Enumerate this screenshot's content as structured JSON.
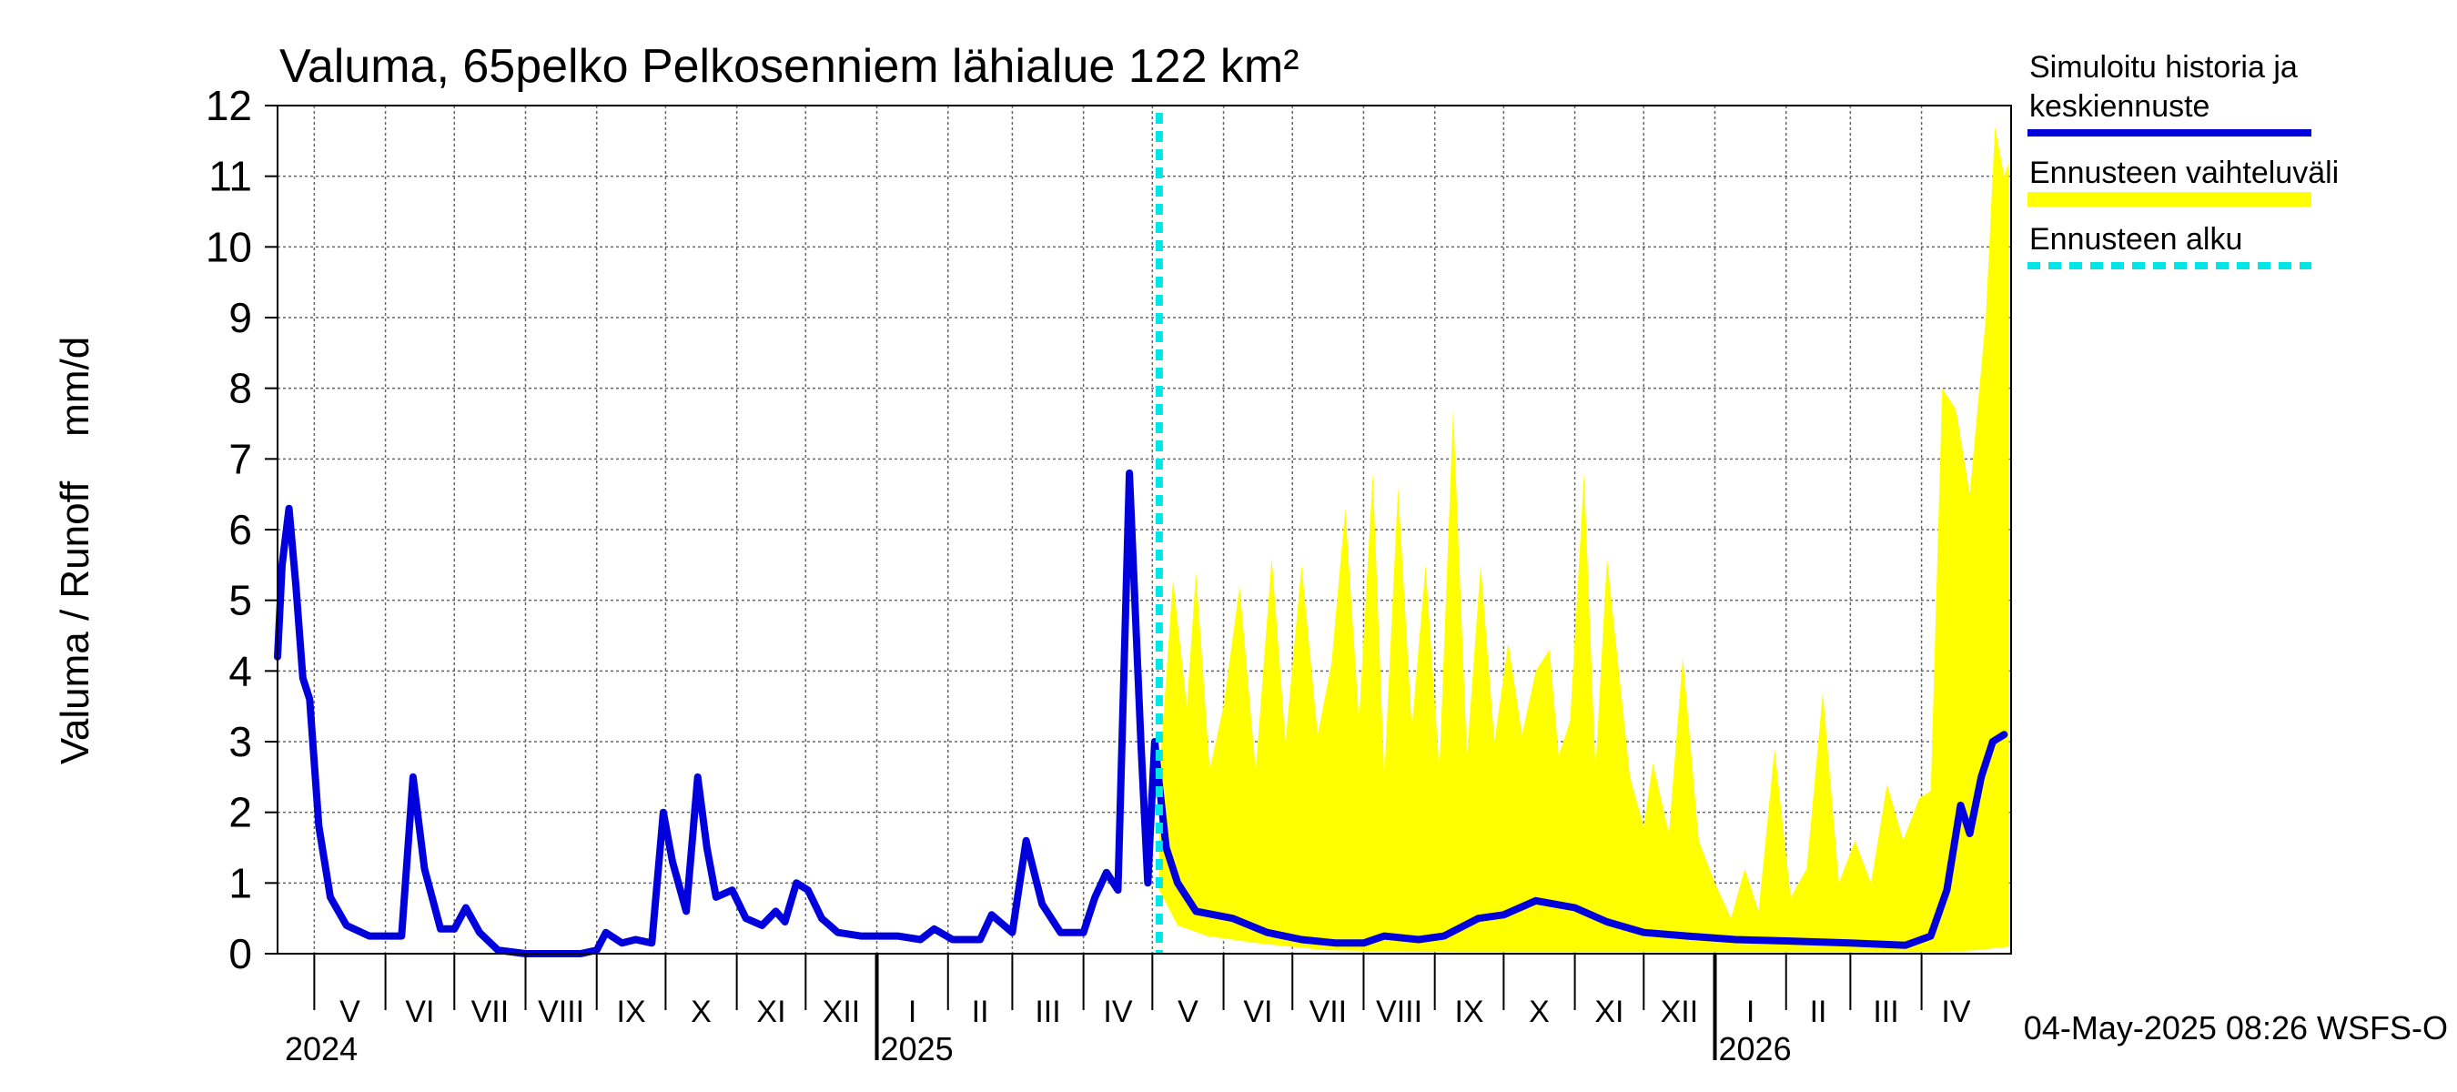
{
  "chart_data": {
    "type": "area",
    "title": "Valuma, 65pelko Pelkosenniem lähialue 122 km²",
    "ylabel": "Valuma / Runoff    mm/d",
    "xlabel": "",
    "ylim": [
      0,
      12
    ],
    "y_ticks": [
      "0",
      "1",
      "2",
      "3",
      "4",
      "5",
      "6",
      "7",
      "8",
      "9",
      "10",
      "11",
      "12"
    ],
    "grid": true,
    "legend_position": "right",
    "timestamp": "04-May-2025 08:26 WSFS-O",
    "x_start": "2024-04-15",
    "x_end": "2026-05-10",
    "forecast_start": "2025-05-04",
    "month_labels": [
      {
        "label": "V",
        "start": "2024-05-01",
        "end": "2024-06-01"
      },
      {
        "label": "VI",
        "start": "2024-06-01",
        "end": "2024-07-01"
      },
      {
        "label": "VII",
        "start": "2024-07-01",
        "end": "2024-08-01"
      },
      {
        "label": "VIII",
        "start": "2024-08-01",
        "end": "2024-09-01"
      },
      {
        "label": "IX",
        "start": "2024-09-01",
        "end": "2024-10-01"
      },
      {
        "label": "X",
        "start": "2024-10-01",
        "end": "2024-11-01"
      },
      {
        "label": "XI",
        "start": "2024-11-01",
        "end": "2024-12-01"
      },
      {
        "label": "XII",
        "start": "2024-12-01",
        "end": "2025-01-01"
      },
      {
        "label": "I",
        "start": "2025-01-01",
        "end": "2025-02-01"
      },
      {
        "label": "II",
        "start": "2025-02-01",
        "end": "2025-03-01"
      },
      {
        "label": "III",
        "start": "2025-03-01",
        "end": "2025-04-01"
      },
      {
        "label": "IV",
        "start": "2025-04-01",
        "end": "2025-05-01"
      },
      {
        "label": "V",
        "start": "2025-05-01",
        "end": "2025-06-01"
      },
      {
        "label": "VI",
        "start": "2025-06-01",
        "end": "2025-07-01"
      },
      {
        "label": "VII",
        "start": "2025-07-01",
        "end": "2025-08-01"
      },
      {
        "label": "VIII",
        "start": "2025-08-01",
        "end": "2025-09-01"
      },
      {
        "label": "IX",
        "start": "2025-09-01",
        "end": "2025-10-01"
      },
      {
        "label": "X",
        "start": "2025-10-01",
        "end": "2025-11-01"
      },
      {
        "label": "XI",
        "start": "2025-11-01",
        "end": "2025-12-01"
      },
      {
        "label": "XII",
        "start": "2025-12-01",
        "end": "2026-01-01"
      },
      {
        "label": "I",
        "start": "2026-01-01",
        "end": "2026-02-01"
      },
      {
        "label": "II",
        "start": "2026-02-01",
        "end": "2026-03-01"
      },
      {
        "label": "III",
        "start": "2026-03-01",
        "end": "2026-04-01"
      },
      {
        "label": "IV",
        "start": "2026-04-01",
        "end": "2026-05-01"
      }
    ],
    "year_labels": [
      {
        "label": "2024",
        "date": "2024-04-15"
      },
      {
        "label": "2025",
        "date": "2025-01-01"
      },
      {
        "label": "2026",
        "date": "2026-01-01"
      }
    ],
    "legend": [
      {
        "label_lines": [
          "Simuloitu historia ja",
          "keskiennuste"
        ],
        "style": "line",
        "color": "#0000dd"
      },
      {
        "label_lines": [
          "Ennusteen vaihteluväli"
        ],
        "style": "band",
        "color": "#ffff00"
      },
      {
        "label_lines": [
          "Ennusteen alku"
        ],
        "style": "dashed",
        "color": "#00e5e5"
      }
    ],
    "series": [
      {
        "name": "Simuloitu historia ja keskiennuste",
        "color": "#0000dd",
        "points": [
          [
            "2024-04-15",
            4.2
          ],
          [
            "2024-04-17",
            5.5
          ],
          [
            "2024-04-20",
            6.3
          ],
          [
            "2024-04-23",
            5.2
          ],
          [
            "2024-04-26",
            3.9
          ],
          [
            "2024-04-29",
            3.6
          ],
          [
            "2024-05-03",
            1.8
          ],
          [
            "2024-05-08",
            0.8
          ],
          [
            "2024-05-15",
            0.4
          ],
          [
            "2024-05-25",
            0.25
          ],
          [
            "2024-06-08",
            0.25
          ],
          [
            "2024-06-13",
            2.5
          ],
          [
            "2024-06-18",
            1.2
          ],
          [
            "2024-06-25",
            0.35
          ],
          [
            "2024-07-01",
            0.35
          ],
          [
            "2024-07-06",
            0.65
          ],
          [
            "2024-07-12",
            0.3
          ],
          [
            "2024-07-20",
            0.05
          ],
          [
            "2024-08-01",
            0.0
          ],
          [
            "2024-08-25",
            0.0
          ],
          [
            "2024-09-01",
            0.05
          ],
          [
            "2024-09-05",
            0.3
          ],
          [
            "2024-09-12",
            0.15
          ],
          [
            "2024-09-18",
            0.2
          ],
          [
            "2024-09-25",
            0.15
          ],
          [
            "2024-09-30",
            2.0
          ],
          [
            "2024-10-04",
            1.3
          ],
          [
            "2024-10-10",
            0.6
          ],
          [
            "2024-10-15",
            2.5
          ],
          [
            "2024-10-19",
            1.5
          ],
          [
            "2024-10-23",
            0.8
          ],
          [
            "2024-10-30",
            0.9
          ],
          [
            "2024-11-05",
            0.5
          ],
          [
            "2024-11-12",
            0.4
          ],
          [
            "2024-11-18",
            0.6
          ],
          [
            "2024-11-22",
            0.45
          ],
          [
            "2024-11-27",
            1.0
          ],
          [
            "2024-12-02",
            0.9
          ],
          [
            "2024-12-08",
            0.5
          ],
          [
            "2024-12-15",
            0.3
          ],
          [
            "2024-12-25",
            0.25
          ],
          [
            "2025-01-10",
            0.25
          ],
          [
            "2025-01-20",
            0.2
          ],
          [
            "2025-01-26",
            0.35
          ],
          [
            "2025-02-03",
            0.2
          ],
          [
            "2025-02-15",
            0.2
          ],
          [
            "2025-02-20",
            0.55
          ],
          [
            "2025-03-01",
            0.3
          ],
          [
            "2025-03-07",
            1.6
          ],
          [
            "2025-03-14",
            0.7
          ],
          [
            "2025-03-22",
            0.3
          ],
          [
            "2025-04-01",
            0.3
          ],
          [
            "2025-04-06",
            0.8
          ],
          [
            "2025-04-11",
            1.15
          ],
          [
            "2025-04-16",
            0.9
          ],
          [
            "2025-04-21",
            6.8
          ],
          [
            "2025-04-26",
            3.0
          ],
          [
            "2025-04-29",
            1.0
          ],
          [
            "2025-05-02",
            3.0
          ],
          [
            "2025-05-07",
            1.5
          ],
          [
            "2025-05-12",
            1.0
          ],
          [
            "2025-05-20",
            0.6
          ],
          [
            "2025-06-05",
            0.5
          ],
          [
            "2025-06-20",
            0.3
          ],
          [
            "2025-07-05",
            0.2
          ],
          [
            "2025-07-20",
            0.15
          ],
          [
            "2025-08-01",
            0.15
          ],
          [
            "2025-08-10",
            0.25
          ],
          [
            "2025-08-25",
            0.2
          ],
          [
            "2025-09-05",
            0.25
          ],
          [
            "2025-09-20",
            0.5
          ],
          [
            "2025-10-01",
            0.55
          ],
          [
            "2025-10-15",
            0.75
          ],
          [
            "2025-11-01",
            0.65
          ],
          [
            "2025-11-15",
            0.45
          ],
          [
            "2025-12-01",
            0.3
          ],
          [
            "2025-12-20",
            0.25
          ],
          [
            "2026-01-10",
            0.2
          ],
          [
            "2026-02-01",
            0.18
          ],
          [
            "2026-03-01",
            0.15
          ],
          [
            "2026-03-25",
            0.12
          ],
          [
            "2026-04-05",
            0.25
          ],
          [
            "2026-04-12",
            0.9
          ],
          [
            "2026-04-18",
            2.1
          ],
          [
            "2026-04-22",
            1.7
          ],
          [
            "2026-04-27",
            2.5
          ],
          [
            "2026-05-02",
            3.0
          ],
          [
            "2026-05-07",
            3.1
          ]
        ]
      },
      {
        "name": "Ennusteen vaihteluväli",
        "color": "#ffff00",
        "upper": [
          [
            "2025-05-04",
            2.5
          ],
          [
            "2025-05-10",
            5.3
          ],
          [
            "2025-05-16",
            3.5
          ],
          [
            "2025-05-20",
            5.4
          ],
          [
            "2025-05-26",
            2.6
          ],
          [
            "2025-06-01",
            3.5
          ],
          [
            "2025-06-08",
            5.2
          ],
          [
            "2025-06-15",
            2.6
          ],
          [
            "2025-06-22",
            5.6
          ],
          [
            "2025-06-28",
            3.0
          ],
          [
            "2025-07-05",
            5.5
          ],
          [
            "2025-07-12",
            3.1
          ],
          [
            "2025-07-18",
            4.1
          ],
          [
            "2025-07-24",
            6.3
          ],
          [
            "2025-07-30",
            3.3
          ],
          [
            "2025-08-05",
            6.8
          ],
          [
            "2025-08-10",
            2.5
          ],
          [
            "2025-08-16",
            6.6
          ],
          [
            "2025-08-22",
            3.2
          ],
          [
            "2025-08-28",
            5.5
          ],
          [
            "2025-09-03",
            2.6
          ],
          [
            "2025-09-09",
            7.7
          ],
          [
            "2025-09-15",
            2.8
          ],
          [
            "2025-09-21",
            5.5
          ],
          [
            "2025-09-27",
            3.0
          ],
          [
            "2025-10-03",
            4.4
          ],
          [
            "2025-10-09",
            3.1
          ],
          [
            "2025-10-15",
            4.0
          ],
          [
            "2025-10-21",
            4.3
          ],
          [
            "2025-10-25",
            2.8
          ],
          [
            "2025-10-30",
            3.3
          ],
          [
            "2025-11-05",
            6.8
          ],
          [
            "2025-11-10",
            2.6
          ],
          [
            "2025-11-15",
            5.6
          ],
          [
            "2025-11-25",
            2.5
          ],
          [
            "2025-12-01",
            1.8
          ],
          [
            "2025-12-05",
            2.7
          ],
          [
            "2025-12-12",
            1.7
          ],
          [
            "2025-12-18",
            4.2
          ],
          [
            "2025-12-25",
            1.6
          ],
          [
            "2026-01-01",
            1.0
          ],
          [
            "2026-01-08",
            0.5
          ],
          [
            "2026-01-14",
            1.2
          ],
          [
            "2026-01-20",
            0.6
          ],
          [
            "2026-01-27",
            2.9
          ],
          [
            "2026-02-03",
            0.8
          ],
          [
            "2026-02-10",
            1.2
          ],
          [
            "2026-02-17",
            3.7
          ],
          [
            "2026-02-24",
            1.0
          ],
          [
            "2026-03-03",
            1.6
          ],
          [
            "2026-03-10",
            1.0
          ],
          [
            "2026-03-17",
            2.4
          ],
          [
            "2026-03-24",
            1.6
          ],
          [
            "2026-03-31",
            2.2
          ],
          [
            "2026-04-05",
            2.3
          ],
          [
            "2026-04-10",
            8.0
          ],
          [
            "2026-04-16",
            7.7
          ],
          [
            "2026-04-22",
            6.5
          ],
          [
            "2026-04-29",
            9.0
          ],
          [
            "2026-05-03",
            11.7
          ],
          [
            "2026-05-07",
            11.0
          ],
          [
            "2026-05-09",
            11.2
          ]
        ],
        "lower": [
          [
            "2025-05-04",
            0.9
          ],
          [
            "2025-05-12",
            0.4
          ],
          [
            "2025-05-25",
            0.25
          ],
          [
            "2025-06-15",
            0.15
          ],
          [
            "2025-07-15",
            0.05
          ],
          [
            "2025-08-15",
            0.03
          ],
          [
            "2025-09-15",
            0.02
          ],
          [
            "2025-10-15",
            0.02
          ],
          [
            "2025-11-15",
            0.02
          ],
          [
            "2025-12-15",
            0.02
          ],
          [
            "2026-01-15",
            0.02
          ],
          [
            "2026-02-15",
            0.02
          ],
          [
            "2026-03-15",
            0.02
          ],
          [
            "2026-04-10",
            0.02
          ],
          [
            "2026-04-25",
            0.05
          ],
          [
            "2026-05-09",
            0.1
          ]
        ]
      }
    ]
  }
}
